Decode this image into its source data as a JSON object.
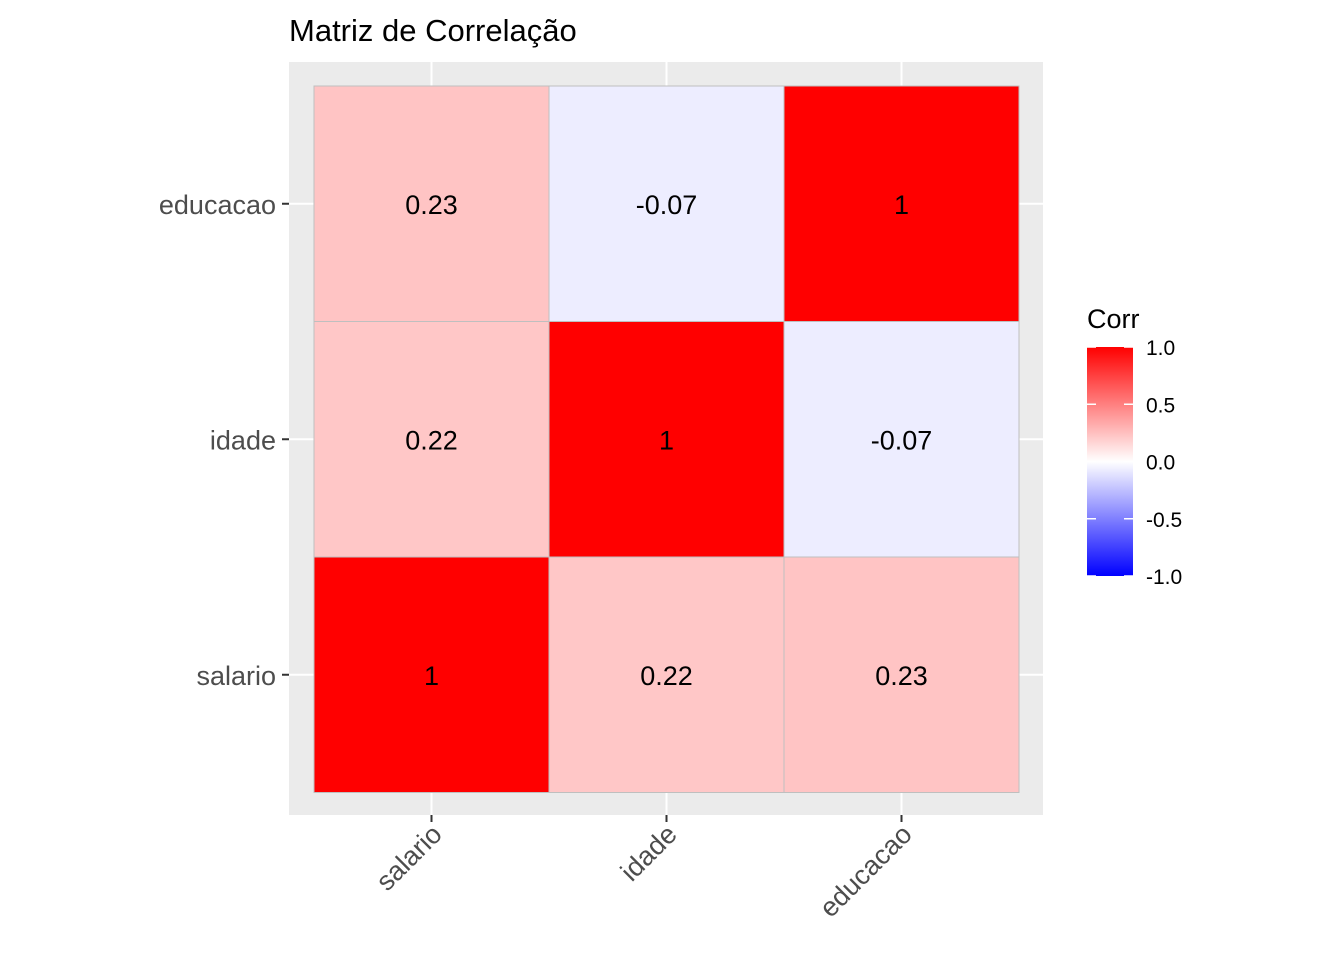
{
  "chart_data": {
    "type": "heatmap",
    "title": "Matriz de Correlação",
    "xlabel": "",
    "ylabel": "",
    "x_categories": [
      "salario",
      "idade",
      "educacao"
    ],
    "y_categories": [
      "salario",
      "idade",
      "educacao"
    ],
    "cells": [
      {
        "x": "salario",
        "y": "salario",
        "value": 1,
        "label": "1"
      },
      {
        "x": "idade",
        "y": "salario",
        "value": 0.22,
        "label": "0.22"
      },
      {
        "x": "educacao",
        "y": "salario",
        "value": 0.23,
        "label": "0.23"
      },
      {
        "x": "salario",
        "y": "idade",
        "value": 0.22,
        "label": "0.22"
      },
      {
        "x": "idade",
        "y": "idade",
        "value": 1,
        "label": "1"
      },
      {
        "x": "educacao",
        "y": "idade",
        "value": -0.07,
        "label": "-0.07"
      },
      {
        "x": "salario",
        "y": "educacao",
        "value": 0.23,
        "label": "0.23"
      },
      {
        "x": "idade",
        "y": "educacao",
        "value": -0.07,
        "label": "-0.07"
      },
      {
        "x": "educacao",
        "y": "educacao",
        "value": 1,
        "label": "1"
      }
    ],
    "legend": {
      "title": "Corr",
      "placement": "right",
      "range": [
        -1,
        1
      ],
      "ticks": [
        1.0,
        0.5,
        0.0,
        -0.5,
        -1.0
      ],
      "tick_labels": [
        "1.0",
        "0.5",
        "0.0",
        "-0.5",
        "-1.0"
      ],
      "low_color": "#0000FF",
      "mid_color": "#FFFFFF",
      "high_color": "#FF0000"
    },
    "grid": true,
    "panel_background": "#EBEBEB"
  }
}
